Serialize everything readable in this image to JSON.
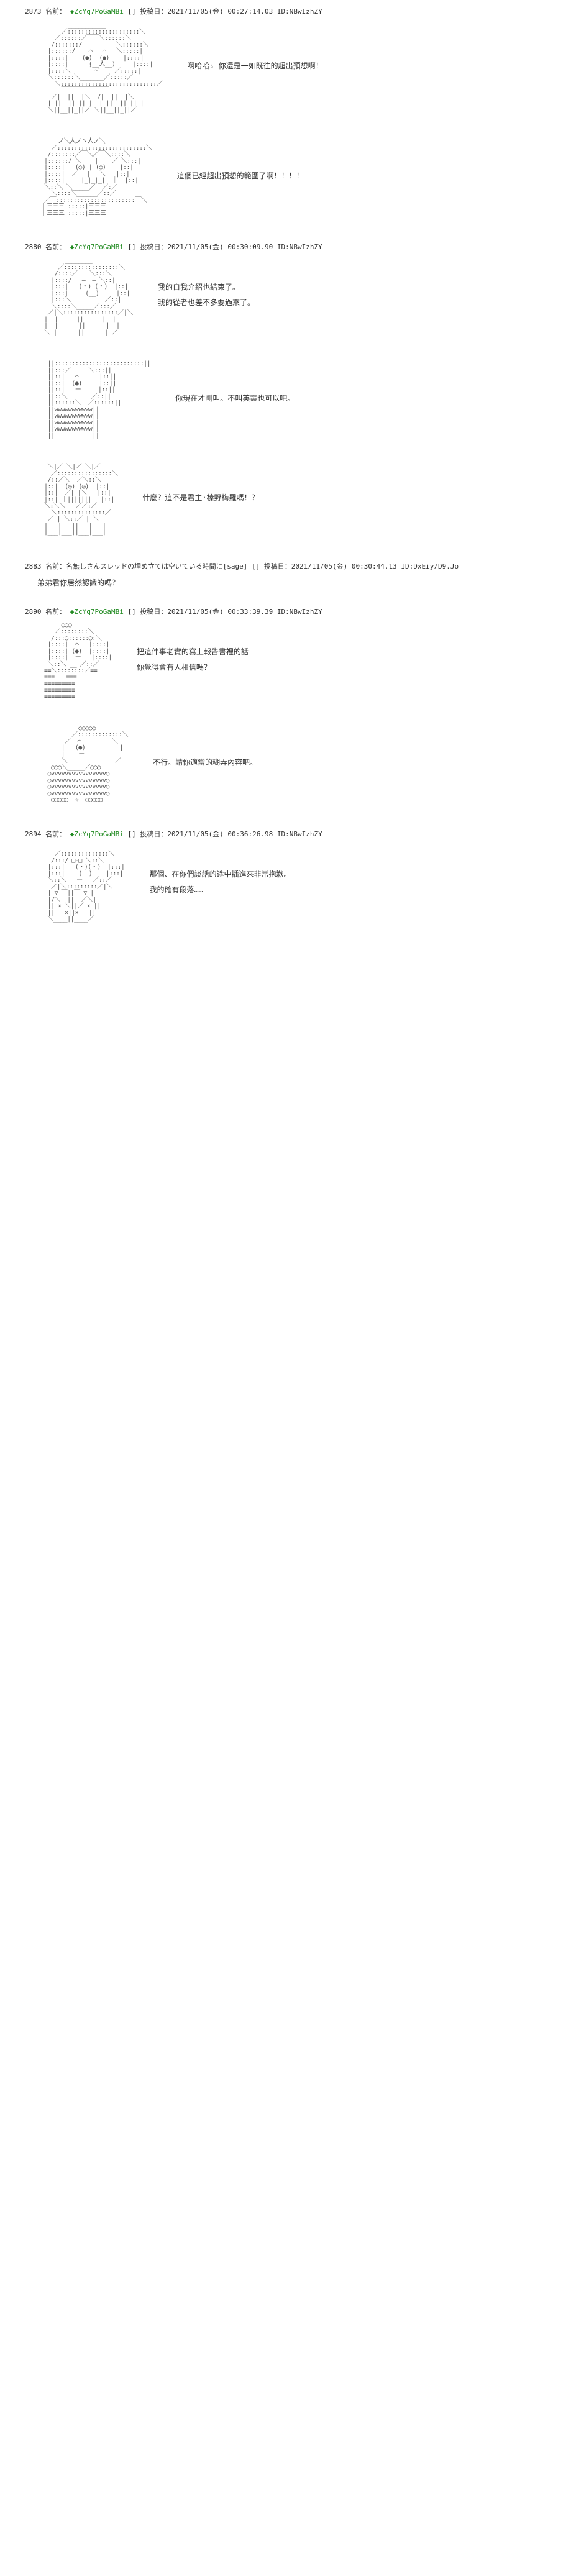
{
  "posts": [
    {
      "id": "2873",
      "name_prefix": "名前：",
      "trip": "◆ZcYq7PoGaMBi",
      "date_label": "投稿日：2021/11/05(金) 00:27:14.03 ID:NBwIzhZY",
      "panels": [
        {
          "art": "girl-long-hair-smile",
          "dialogue": [
            "啊哈哈☆ 你還是一如既往的超出預想啊！"
          ]
        },
        {
          "art": "boy-messy-hair-close",
          "dialogue": [
            "這個已經超出預想的範圍了啊！！！！"
          ]
        }
      ]
    },
    {
      "id": "2880",
      "name_prefix": "名前：",
      "trip": "◆ZcYq7PoGaMBi",
      "date_label": "投稿日：2021/11/05(金) 00:30:09.90 ID:NBwIzhZY",
      "panels": [
        {
          "art": "boy-front-neutral",
          "dialogue": [
            "我的自我介紹也結束了。",
            "我的從者也差不多要過來了。"
          ]
        },
        {
          "art": "girl-long-hair-side",
          "dialogue": [
            "你現在才剛叫。不叫英靈也可以吧。"
          ]
        },
        {
          "art": "boy-spiky-hair-yell",
          "dialogue": [
            "什麼？這不是君主·榛野梅羅嗎！？"
          ]
        }
      ]
    },
    {
      "id": "2883",
      "name_prefix": "名前：名無しさんスレッドの埋め立ては空いている時間に[sage]",
      "trip": "",
      "date_label": "投稿日：2021/11/05(金) 00:30:44.13 ID:DxEiy/D9.Jo",
      "comment": "弟弟君你居然認識的嗎？"
    },
    {
      "id": "2890",
      "name_prefix": "名前：",
      "trip": "◆ZcYq7PoGaMBi",
      "date_label": "投稿日：2021/11/05(金) 00:33:39.39 ID:NBwIzhZY",
      "panels": [
        {
          "art": "girl-bun-hair-side",
          "dialogue": [
            "把這件事老實的寫上報告書裡的話",
            "你覺得會有人相信嗎？"
          ]
        },
        {
          "art": "girl-long-hair-half",
          "dialogue": [
            "不行。請你適當的糊弄內容吧。"
          ]
        }
      ]
    },
    {
      "id": "2894",
      "name_prefix": "名前：",
      "trip": "◆ZcYq7PoGaMBi",
      "date_label": "投稿日：2021/11/05(金) 00:36:26.98 ID:NBwIzhZY",
      "panels": [
        {
          "art": "boy-suit-glasses",
          "dialogue": [
            "那個、在你們談話的途中插進來非常抱歉。",
            "我的確有段落……"
          ]
        }
      ]
    }
  ],
  "art_placeholders": {
    "girl-long-hair-smile": "         ___________\n       ／:::::::::::::::::::::＼\n     ／::::::／￣￣＼::::::＼\n    /:::::::/          ＼::::::＼\n   |::::::/    ⌒   ⌒   ＼:::::|\n   |::::|    (●)  (●)    |::::|\n   |::::|      (__人__)     |::::|\n   |::::＼     ｀⌒´    ／:::::|\n   ＼::::::＼_______／:::::／\n     ＼::::::::::::::::::::::::::::／\n       ￣￣￣￣￣￣￣￣\n    ／|  ||  |＼  /|  ||  |＼\n   | ||  || || |  | ||  || || |\n   ＼||__||_||／ ＼||__||_||／",
    "boy-messy-hair-close": "      ノ＼人ノヽ人ノ＼\n    ／::::::::::::::::::::::::::＼\n   /:::::::／￣＼／￣＼::::＼\n  |::::::/ ＼    |    ／ ＼:::|\n  |::::|   (○) | (○)    |::|\n  |::::|  ／ ＿|＿ ＼   |::|\n  |::::| ｜  |_|_|_|  ｜  |::|\n  ＼::＼ ＼_____／  ／:／\n    ＼::::＼______／::／\n  ／￣:::::::::::::::::::::::￣＼\n ｜三三三|:::::|三三三｜\n ｜三三三|:::::|三三三｜",
    "boy-front-neutral": "        ________\n      ／::::::::::::::::＼\n     /::::／￣￣＼:::＼\n    |::::/   ―  ― ＼::|\n    |:::|   (・) (・)  |::|\n    |:::|     (__)     |::|\n    |:::＼    ___   ／::|\n    ＼::::＼_____／:::／\n   ／|＼::::::::::::::::／|＼\n  |  |  ￣￣||￣￣  |  |\n  |  |      ||      |  |\n  ＼_|______||______|_／",
    "girl-long-hair-side": "   ||::::::::::::::::::::::::::||\n   ||:::／￣￣￣＼:::||\n   ||::|   ⌒      |::||\n   ||::|  (●)     |::||\n   ||::|   ー     |::||\n   ||::＼  ___  ／::||\n   ||::::::＼__／::::::||\n   ||wwwwwwwwwww||\n   ||wwwwwwwwwww||\n   ||wwwwwwwwwww||\n   ||wwwwwwwwwww||\n   ||___________||",
    "boy-spiky-hair-yell": "   ＼|／ ＼|／ ＼|／\n    ／::::::::::::::::＼\n   /::／＼  ／＼::＼\n  |::|  (◎) (◎)  |::|\n  |::|  ／|_|＼   |::|\n  |::| ｜|||||||｜ |::|\n  ＼:＼＼___／／:／\n    ＼::::::::::::::／\n   ／ | ＼::／ | ＼\n  |   |   ||   |   |\n  |___|___||___|___|",
    "girl-bun-hair-side": "       ○○○\n     ／::::::::＼\n    /:::○::::::○:＼\n   |::::|  ⌒   |::::|\n   |::::| (●)  |::::|\n   |::::|  ー   |::::|\n   ＼::＼ __ ／::／\n  ≡≡＼::::::::／≡≡\n  ≡≡≡￣￣≡≡≡\n  ≡≡≡≡≡≡≡≡≡\n  ≡≡≡≡≡≡≡≡≡\n  ≡≡≡≡≡≡≡≡≡",
    "girl-long-hair-half": "            ○○○○○\n          ／:::::::::::::＼\n        ／  ⌒         ＼\n       |   (●)          |\n       |    ー           |\n       ＼   ___        ／\n    ○○○＼_____／○○○\n   ○vvvvvvvvvvvvvvvv○\n   ○vvvvvvvvvvvvvvvv○\n   ○vvvvvvvvvvvvvvvv○\n   ○vvvvvvvvvvvvvvvv○\n    ○○○○○  ☆  ○○○○○",
    "boy-suit-glasses": "       ________\n     ／::::::::::::::＼\n    /:::/ □-□ ＼::＼\n   |:::|   (・)(・)  |:::|\n   |:::|    (__)    |:::|\n   ＼::＼   ー   ／::／\n    ／|＼:::::::::／|＼\n   | ▽ ￣||￣ ▽ |\n   |/＼  ||  ／＼|\n   || × ＼||／ × ||\n   ||___×||×___||\n   ＼____||____／"
  }
}
